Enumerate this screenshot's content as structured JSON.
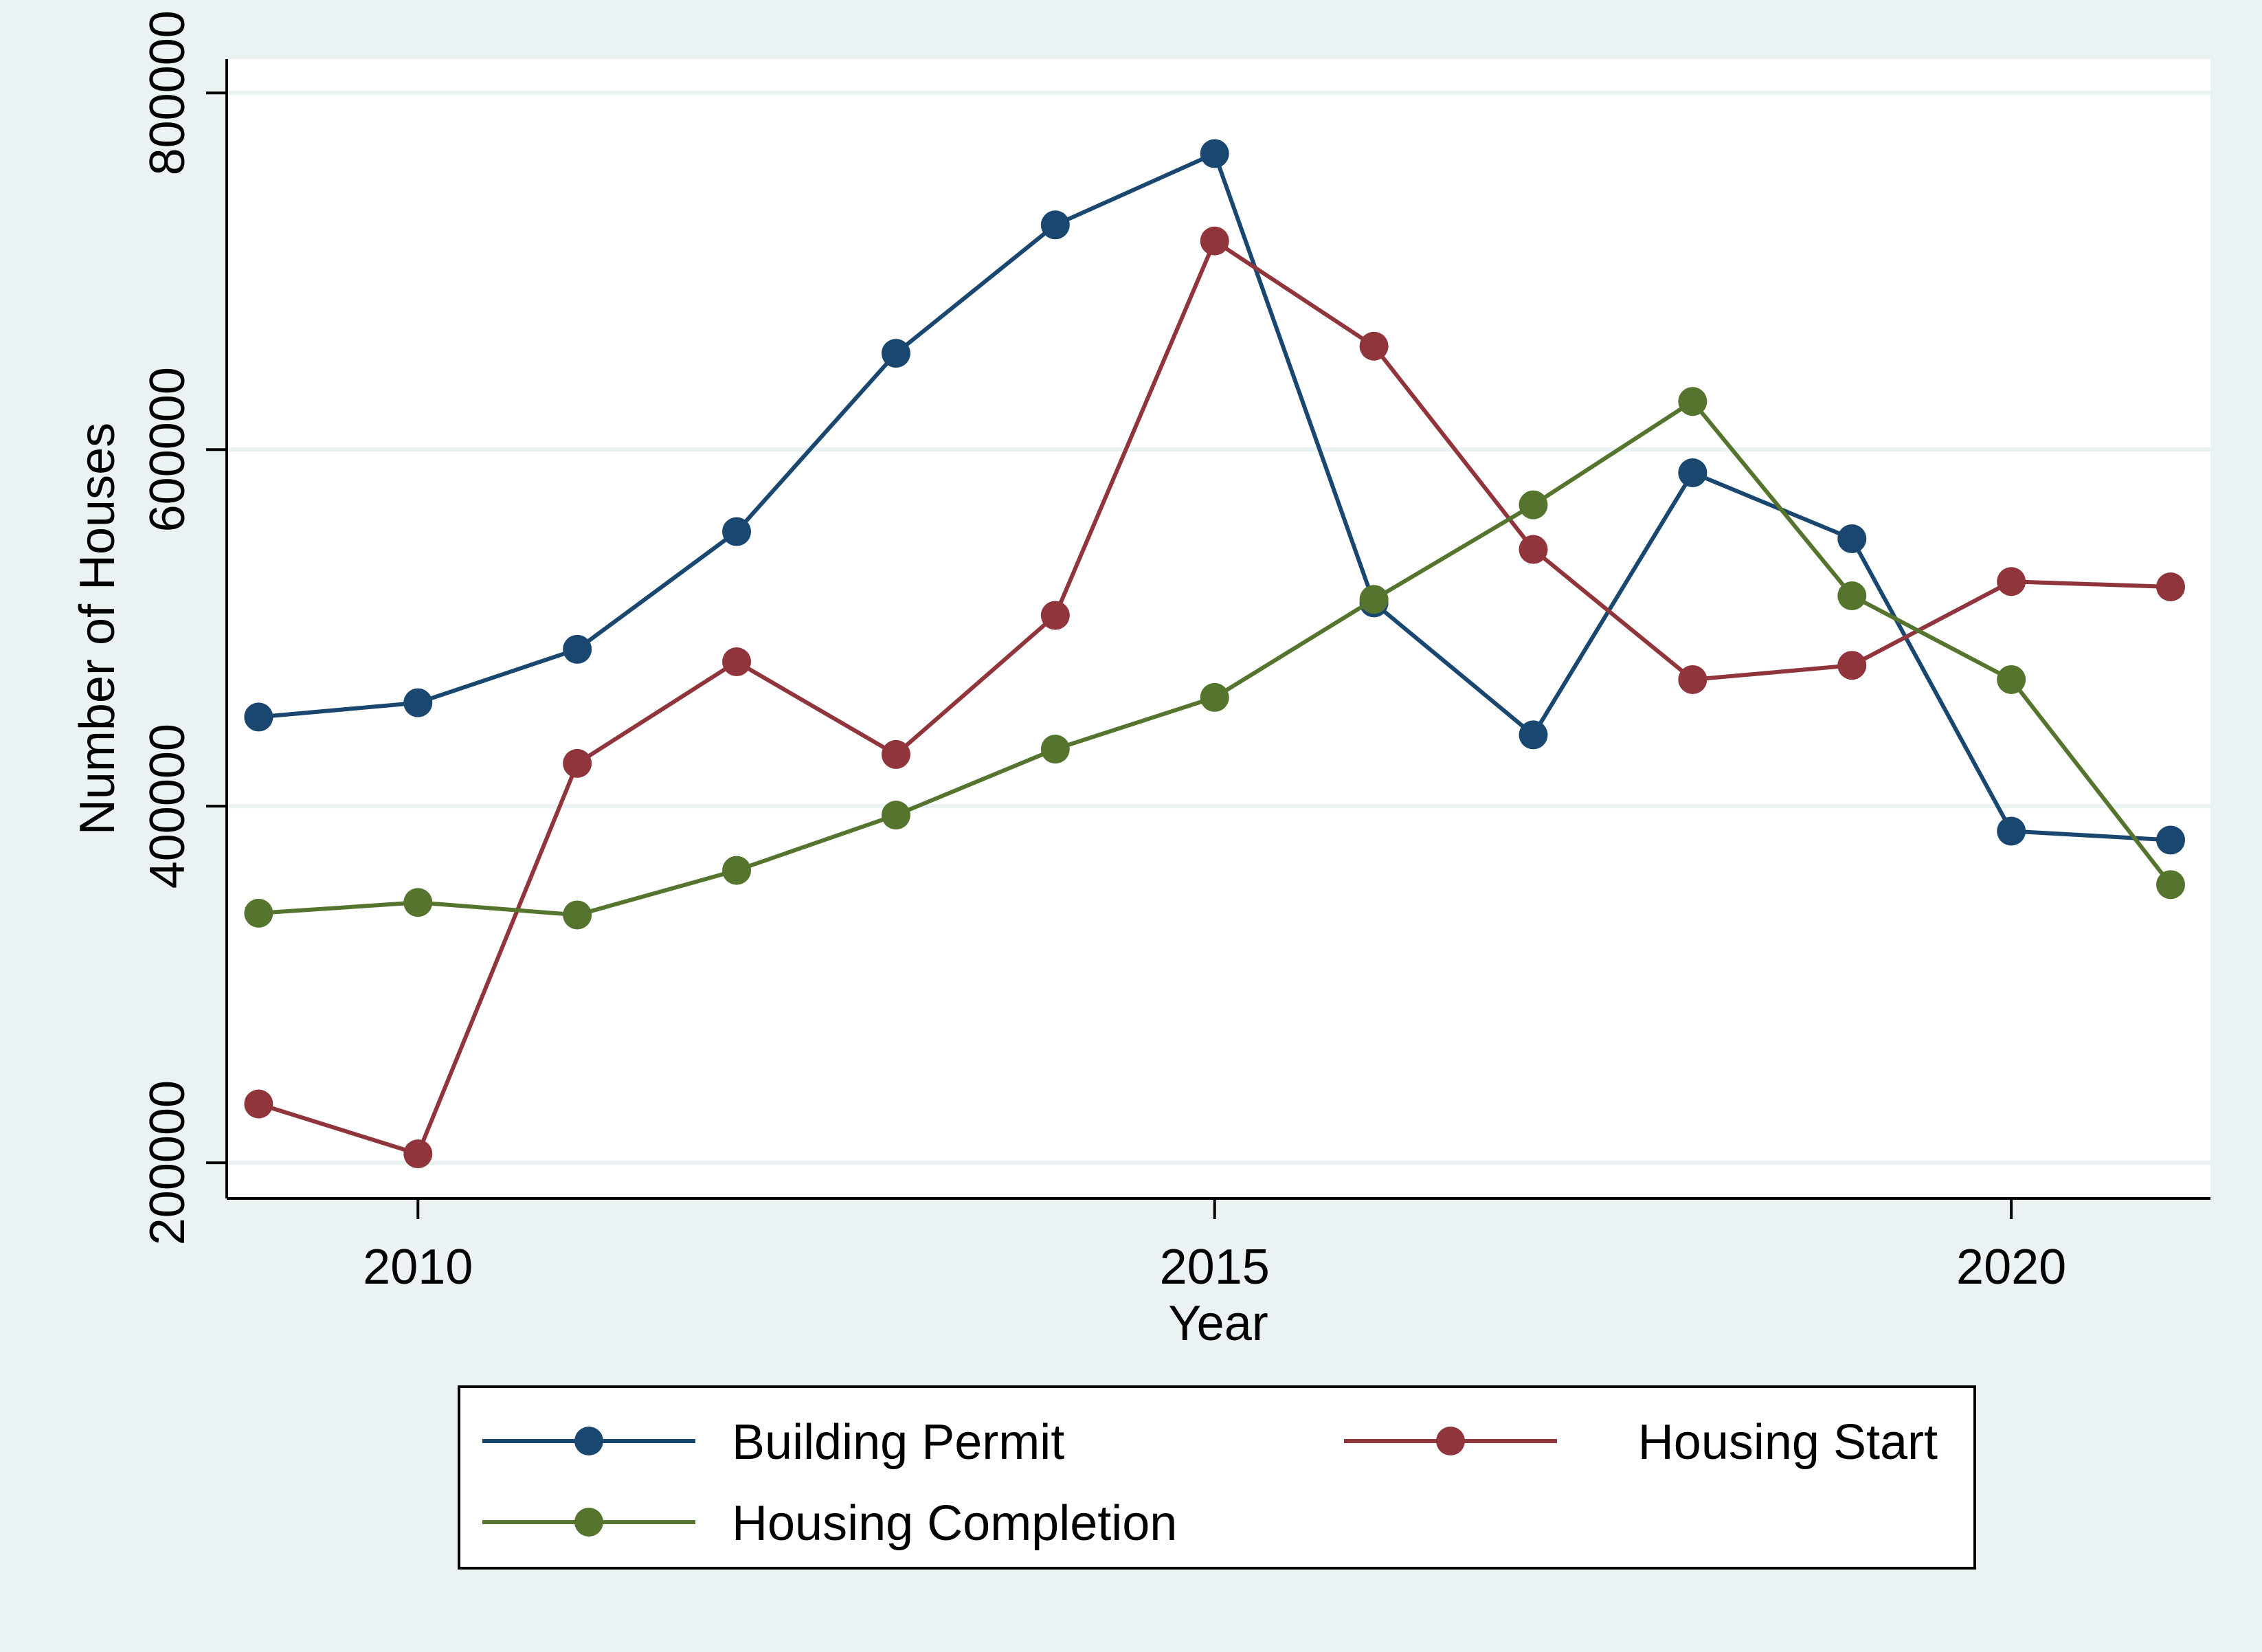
{
  "chart_data": {
    "type": "line",
    "title": "",
    "xlabel": "Year",
    "ylabel": "Number of Houses",
    "xlim": [
      2008.8,
      2021.25
    ],
    "ylim": [
      180000,
      819000
    ],
    "x_ticks": [
      2010,
      2015,
      2020
    ],
    "x_tick_labels": [
      "2010",
      "2015",
      "2020"
    ],
    "y_ticks": [
      200000,
      400000,
      600000,
      800000
    ],
    "y_tick_labels": [
      "200000",
      "400000",
      "600000",
      "800000"
    ],
    "grid": "horizontal",
    "legend_position": "bottom",
    "x": [
      2009,
      2010,
      2011,
      2012,
      2013,
      2014,
      2015,
      2016,
      2017,
      2018,
      2019,
      2020,
      2021
    ],
    "series": [
      {
        "name": "Building Permit",
        "color": "#1a476f",
        "values": [
          450000,
          458000,
          488000,
          554000,
          654000,
          726000,
          766000,
          514000,
          440000,
          587000,
          550000,
          386000,
          381000
        ]
      },
      {
        "name": "Housing Start",
        "color": "#90353b",
        "values": [
          233000,
          205000,
          424000,
          481000,
          429000,
          507000,
          717000,
          658000,
          544000,
          471000,
          479000,
          526000,
          523000
        ]
      },
      {
        "name": "Housing Completion",
        "color": "#55752f",
        "values": [
          340000,
          346000,
          339000,
          364000,
          395000,
          432000,
          461000,
          516000,
          569000,
          627000,
          518000,
          471000,
          356000
        ]
      }
    ]
  }
}
